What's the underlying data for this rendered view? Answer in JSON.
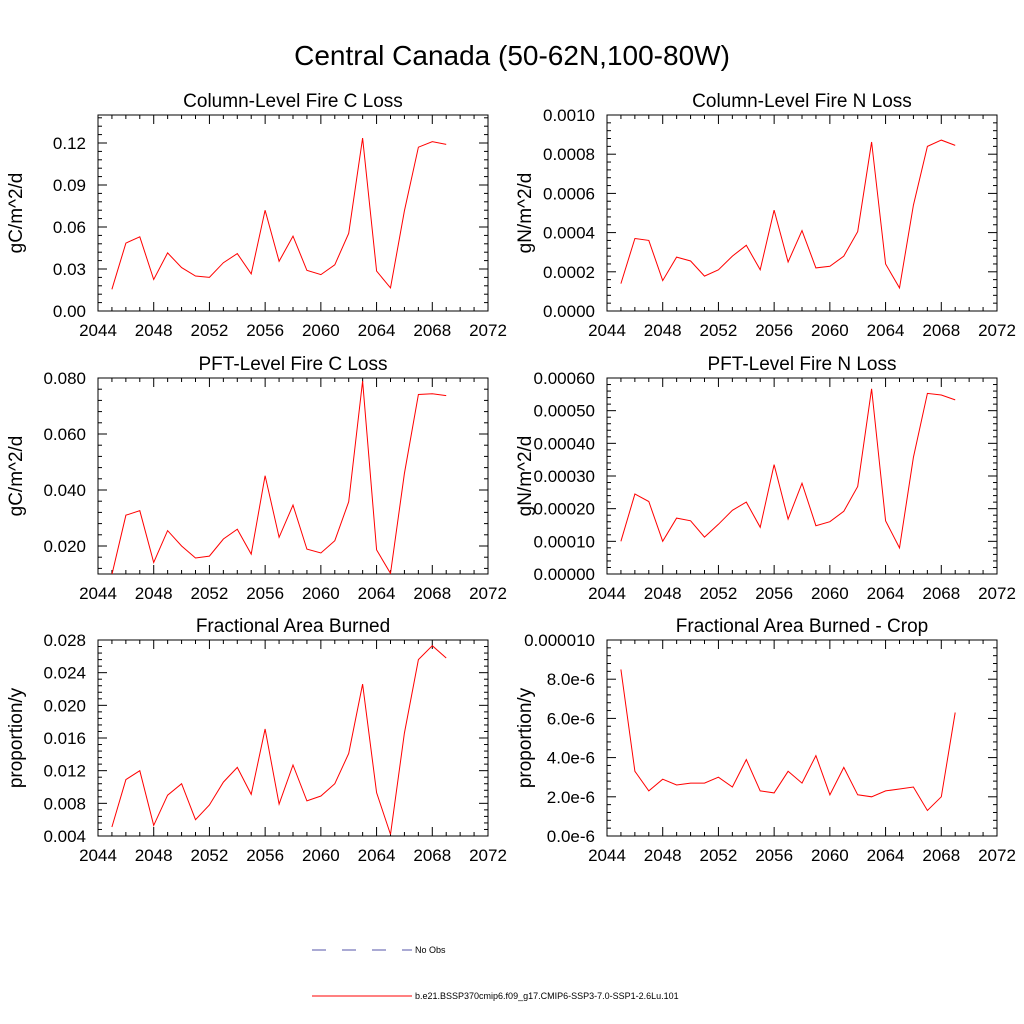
{
  "figure_title": "Central Canada (50-62N,100-80W)",
  "legend": {
    "entries": [
      {
        "label": "No Obs",
        "color": "#5555aa",
        "style": "dashed"
      },
      {
        "label": "b.e21.BSSP370cmip6.f09_g17.CMIP6-SSP3-7.0-SSP1-2.6Lu.101",
        "color": "#ff0000",
        "style": "solid"
      }
    ]
  },
  "chart_data": [
    {
      "type": "line",
      "title": "Column-Level Fire C Loss",
      "ylabel": "gC/m^2/d",
      "xlabel": "",
      "xlim": [
        2044,
        2072
      ],
      "ylim": [
        0,
        0.14
      ],
      "xticks": [
        2044,
        2048,
        2052,
        2056,
        2060,
        2064,
        2068,
        2072
      ],
      "yticks": [
        0,
        0.03,
        0.06,
        0.09,
        0.12
      ],
      "ytick_labels": [
        "0.00",
        "0.03",
        "0.06",
        "0.09",
        "0.12"
      ],
      "series": [
        {
          "name": "b.e21.BSSP370cmip6.f09_g17.CMIP6-SSP3-7.0-SSP1-2.6Lu.101",
          "color": "#ff0000",
          "x": [
            2045,
            2046,
            2047,
            2048,
            2049,
            2050,
            2051,
            2052,
            2053,
            2054,
            2055,
            2056,
            2057,
            2058,
            2059,
            2060,
            2061,
            2062,
            2063,
            2064,
            2065,
            2066,
            2067,
            2068,
            2069
          ],
          "values": [
            0.0155,
            0.0485,
            0.053,
            0.0225,
            0.0415,
            0.031,
            0.025,
            0.024,
            0.0345,
            0.041,
            0.0265,
            0.072,
            0.0355,
            0.0535,
            0.029,
            0.026,
            0.033,
            0.0555,
            0.1235,
            0.0285,
            0.0165,
            0.0715,
            0.117,
            0.121,
            0.119
          ]
        }
      ]
    },
    {
      "type": "line",
      "title": "Column-Level Fire N Loss",
      "ylabel": "gN/m^2/d",
      "xlabel": "",
      "xlim": [
        2044,
        2072
      ],
      "ylim": [
        0,
        0.001
      ],
      "xticks": [
        2044,
        2048,
        2052,
        2056,
        2060,
        2064,
        2068,
        2072
      ],
      "yticks": [
        0,
        0.0002,
        0.0004,
        0.0006,
        0.0008,
        0.001
      ],
      "ytick_labels": [
        "0.0000",
        "0.0002",
        "0.0004",
        "0.0006",
        "0.0008",
        "0.0010"
      ],
      "series": [
        {
          "name": "b.e21.BSSP370cmip6.f09_g17.CMIP6-SSP3-7.0-SSP1-2.6Lu.101",
          "color": "#ff0000",
          "x": [
            2045,
            2046,
            2047,
            2048,
            2049,
            2050,
            2051,
            2052,
            2053,
            2054,
            2055,
            2056,
            2057,
            2058,
            2059,
            2060,
            2061,
            2062,
            2063,
            2064,
            2065,
            2066,
            2067,
            2068,
            2069
          ],
          "values": [
            0.00014,
            0.00037,
            0.00036,
            0.000155,
            0.000275,
            0.000255,
            0.000178,
            0.00021,
            0.00028,
            0.000335,
            0.00021,
            0.000515,
            0.00025,
            0.00041,
            0.00022,
            0.000228,
            0.00028,
            0.000405,
            0.000862,
            0.00024,
            0.000118,
            0.00054,
            0.00084,
            0.000872,
            0.000845
          ]
        }
      ]
    },
    {
      "type": "line",
      "title": "PFT-Level Fire C Loss",
      "ylabel": "gC/m^2/d",
      "xlabel": "",
      "xlim": [
        2044,
        2072
      ],
      "ylim": [
        0.01,
        0.08
      ],
      "xticks": [
        2044,
        2048,
        2052,
        2056,
        2060,
        2064,
        2068,
        2072
      ],
      "yticks": [
        0.02,
        0.04,
        0.06,
        0.08
      ],
      "ytick_labels": [
        "0.020",
        "0.040",
        "0.060",
        "0.080"
      ],
      "series": [
        {
          "name": "b.e21.BSSP370cmip6.f09_g17.CMIP6-SSP3-7.0-SSP1-2.6Lu.101",
          "color": "#ff0000",
          "x": [
            2045,
            2046,
            2047,
            2048,
            2049,
            2050,
            2051,
            2052,
            2053,
            2054,
            2055,
            2056,
            2057,
            2058,
            2059,
            2060,
            2061,
            2062,
            2063,
            2064,
            2065,
            2066,
            2067,
            2068,
            2069
          ],
          "values": [
            0.0098,
            0.031,
            0.0326,
            0.0141,
            0.0255,
            0.02,
            0.0157,
            0.0164,
            0.0225,
            0.026,
            0.0171,
            0.0451,
            0.0231,
            0.0346,
            0.0189,
            0.0175,
            0.0219,
            0.0358,
            0.0789,
            0.0186,
            0.0102,
            0.0459,
            0.0741,
            0.0744,
            0.0737
          ]
        }
      ]
    },
    {
      "type": "line",
      "title": "PFT-Level Fire N Loss",
      "ylabel": "gN/m^2/d",
      "xlabel": "",
      "xlim": [
        2044,
        2072
      ],
      "ylim": [
        0,
        0.0006
      ],
      "xticks": [
        2044,
        2048,
        2052,
        2056,
        2060,
        2064,
        2068,
        2072
      ],
      "yticks": [
        0,
        0.0001,
        0.0002,
        0.0003,
        0.0004,
        0.0005,
        0.0006
      ],
      "ytick_labels": [
        "0.00000",
        "0.00010",
        "0.00020",
        "0.00030",
        "0.00040",
        "0.00050",
        "0.00060"
      ],
      "series": [
        {
          "name": "b.e21.BSSP370cmip6.f09_g17.CMIP6-SSP3-7.0-SSP1-2.6Lu.101",
          "color": "#ff0000",
          "x": [
            2045,
            2046,
            2047,
            2048,
            2049,
            2050,
            2051,
            2052,
            2053,
            2054,
            2055,
            2056,
            2057,
            2058,
            2059,
            2060,
            2061,
            2062,
            2063,
            2064,
            2065,
            2066,
            2067,
            2068,
            2069
          ],
          "values": [
            0.0001,
            0.000245,
            0.000222,
            0.0001,
            0.000171,
            0.000163,
            0.000113,
            0.000152,
            0.000195,
            0.00022,
            0.000143,
            0.000335,
            0.000168,
            0.000278,
            0.000148,
            0.00016,
            0.000192,
            0.000268,
            0.000567,
            0.000163,
            8e-05,
            0.000357,
            0.000553,
            0.000548,
            0.000533
          ]
        }
      ]
    },
    {
      "type": "line",
      "title": "Fractional Area Burned",
      "ylabel": "proportion/y",
      "xlabel": "",
      "xlim": [
        2044,
        2072
      ],
      "ylim": [
        0.004,
        0.028
      ],
      "xticks": [
        2044,
        2048,
        2052,
        2056,
        2060,
        2064,
        2068,
        2072
      ],
      "yticks": [
        0.004,
        0.008,
        0.012,
        0.016,
        0.02,
        0.024,
        0.028
      ],
      "ytick_labels": [
        "0.004",
        "0.008",
        "0.012",
        "0.016",
        "0.020",
        "0.024",
        "0.028"
      ],
      "series": [
        {
          "name": "b.e21.BSSP370cmip6.f09_g17.CMIP6-SSP3-7.0-SSP1-2.6Lu.101",
          "color": "#ff0000",
          "x": [
            2045,
            2046,
            2047,
            2048,
            2049,
            2050,
            2051,
            2052,
            2053,
            2054,
            2055,
            2056,
            2057,
            2058,
            2059,
            2060,
            2061,
            2062,
            2063,
            2064,
            2065,
            2066,
            2067,
            2068,
            2069
          ],
          "values": [
            0.0051,
            0.0109,
            0.012,
            0.0053,
            0.009,
            0.0104,
            0.006,
            0.0078,
            0.0106,
            0.0124,
            0.0091,
            0.0171,
            0.0079,
            0.0127,
            0.0083,
            0.0089,
            0.0104,
            0.0141,
            0.0226,
            0.0093,
            0.0042,
            0.0166,
            0.0256,
            0.0273,
            0.0258
          ]
        }
      ]
    },
    {
      "type": "line",
      "title": "Fractional Area Burned - Crop",
      "ylabel": "proportion/y",
      "xlabel": "",
      "xlim": [
        2044,
        2072
      ],
      "ylim": [
        0,
        1e-05
      ],
      "xticks": [
        2044,
        2048,
        2052,
        2056,
        2060,
        2064,
        2068,
        2072
      ],
      "yticks": [
        0,
        2e-06,
        4e-06,
        6e-06,
        8e-06,
        1e-05
      ],
      "ytick_labels": [
        "0.0e-6",
        "2.0e-6",
        "4.0e-6",
        "6.0e-6",
        "8.0e-6",
        "0.000010"
      ],
      "series": [
        {
          "name": "b.e21.BSSP370cmip6.f09_g17.CMIP6-SSP3-7.0-SSP1-2.6Lu.101",
          "color": "#ff0000",
          "x": [
            2045,
            2046,
            2047,
            2048,
            2049,
            2050,
            2051,
            2052,
            2053,
            2054,
            2055,
            2056,
            2057,
            2058,
            2059,
            2060,
            2061,
            2062,
            2063,
            2064,
            2065,
            2066,
            2067,
            2068,
            2069
          ],
          "values": [
            8.5e-06,
            3.3e-06,
            2.3e-06,
            2.9e-06,
            2.6e-06,
            2.7e-06,
            2.7e-06,
            3e-06,
            2.5e-06,
            3.9e-06,
            2.3e-06,
            2.2e-06,
            3.3e-06,
            2.7e-06,
            4.1e-06,
            2.1e-06,
            3.5e-06,
            2.1e-06,
            2e-06,
            2.3e-06,
            2.4e-06,
            2.5e-06,
            1.3e-06,
            2e-06,
            6.3e-06
          ]
        }
      ]
    }
  ]
}
